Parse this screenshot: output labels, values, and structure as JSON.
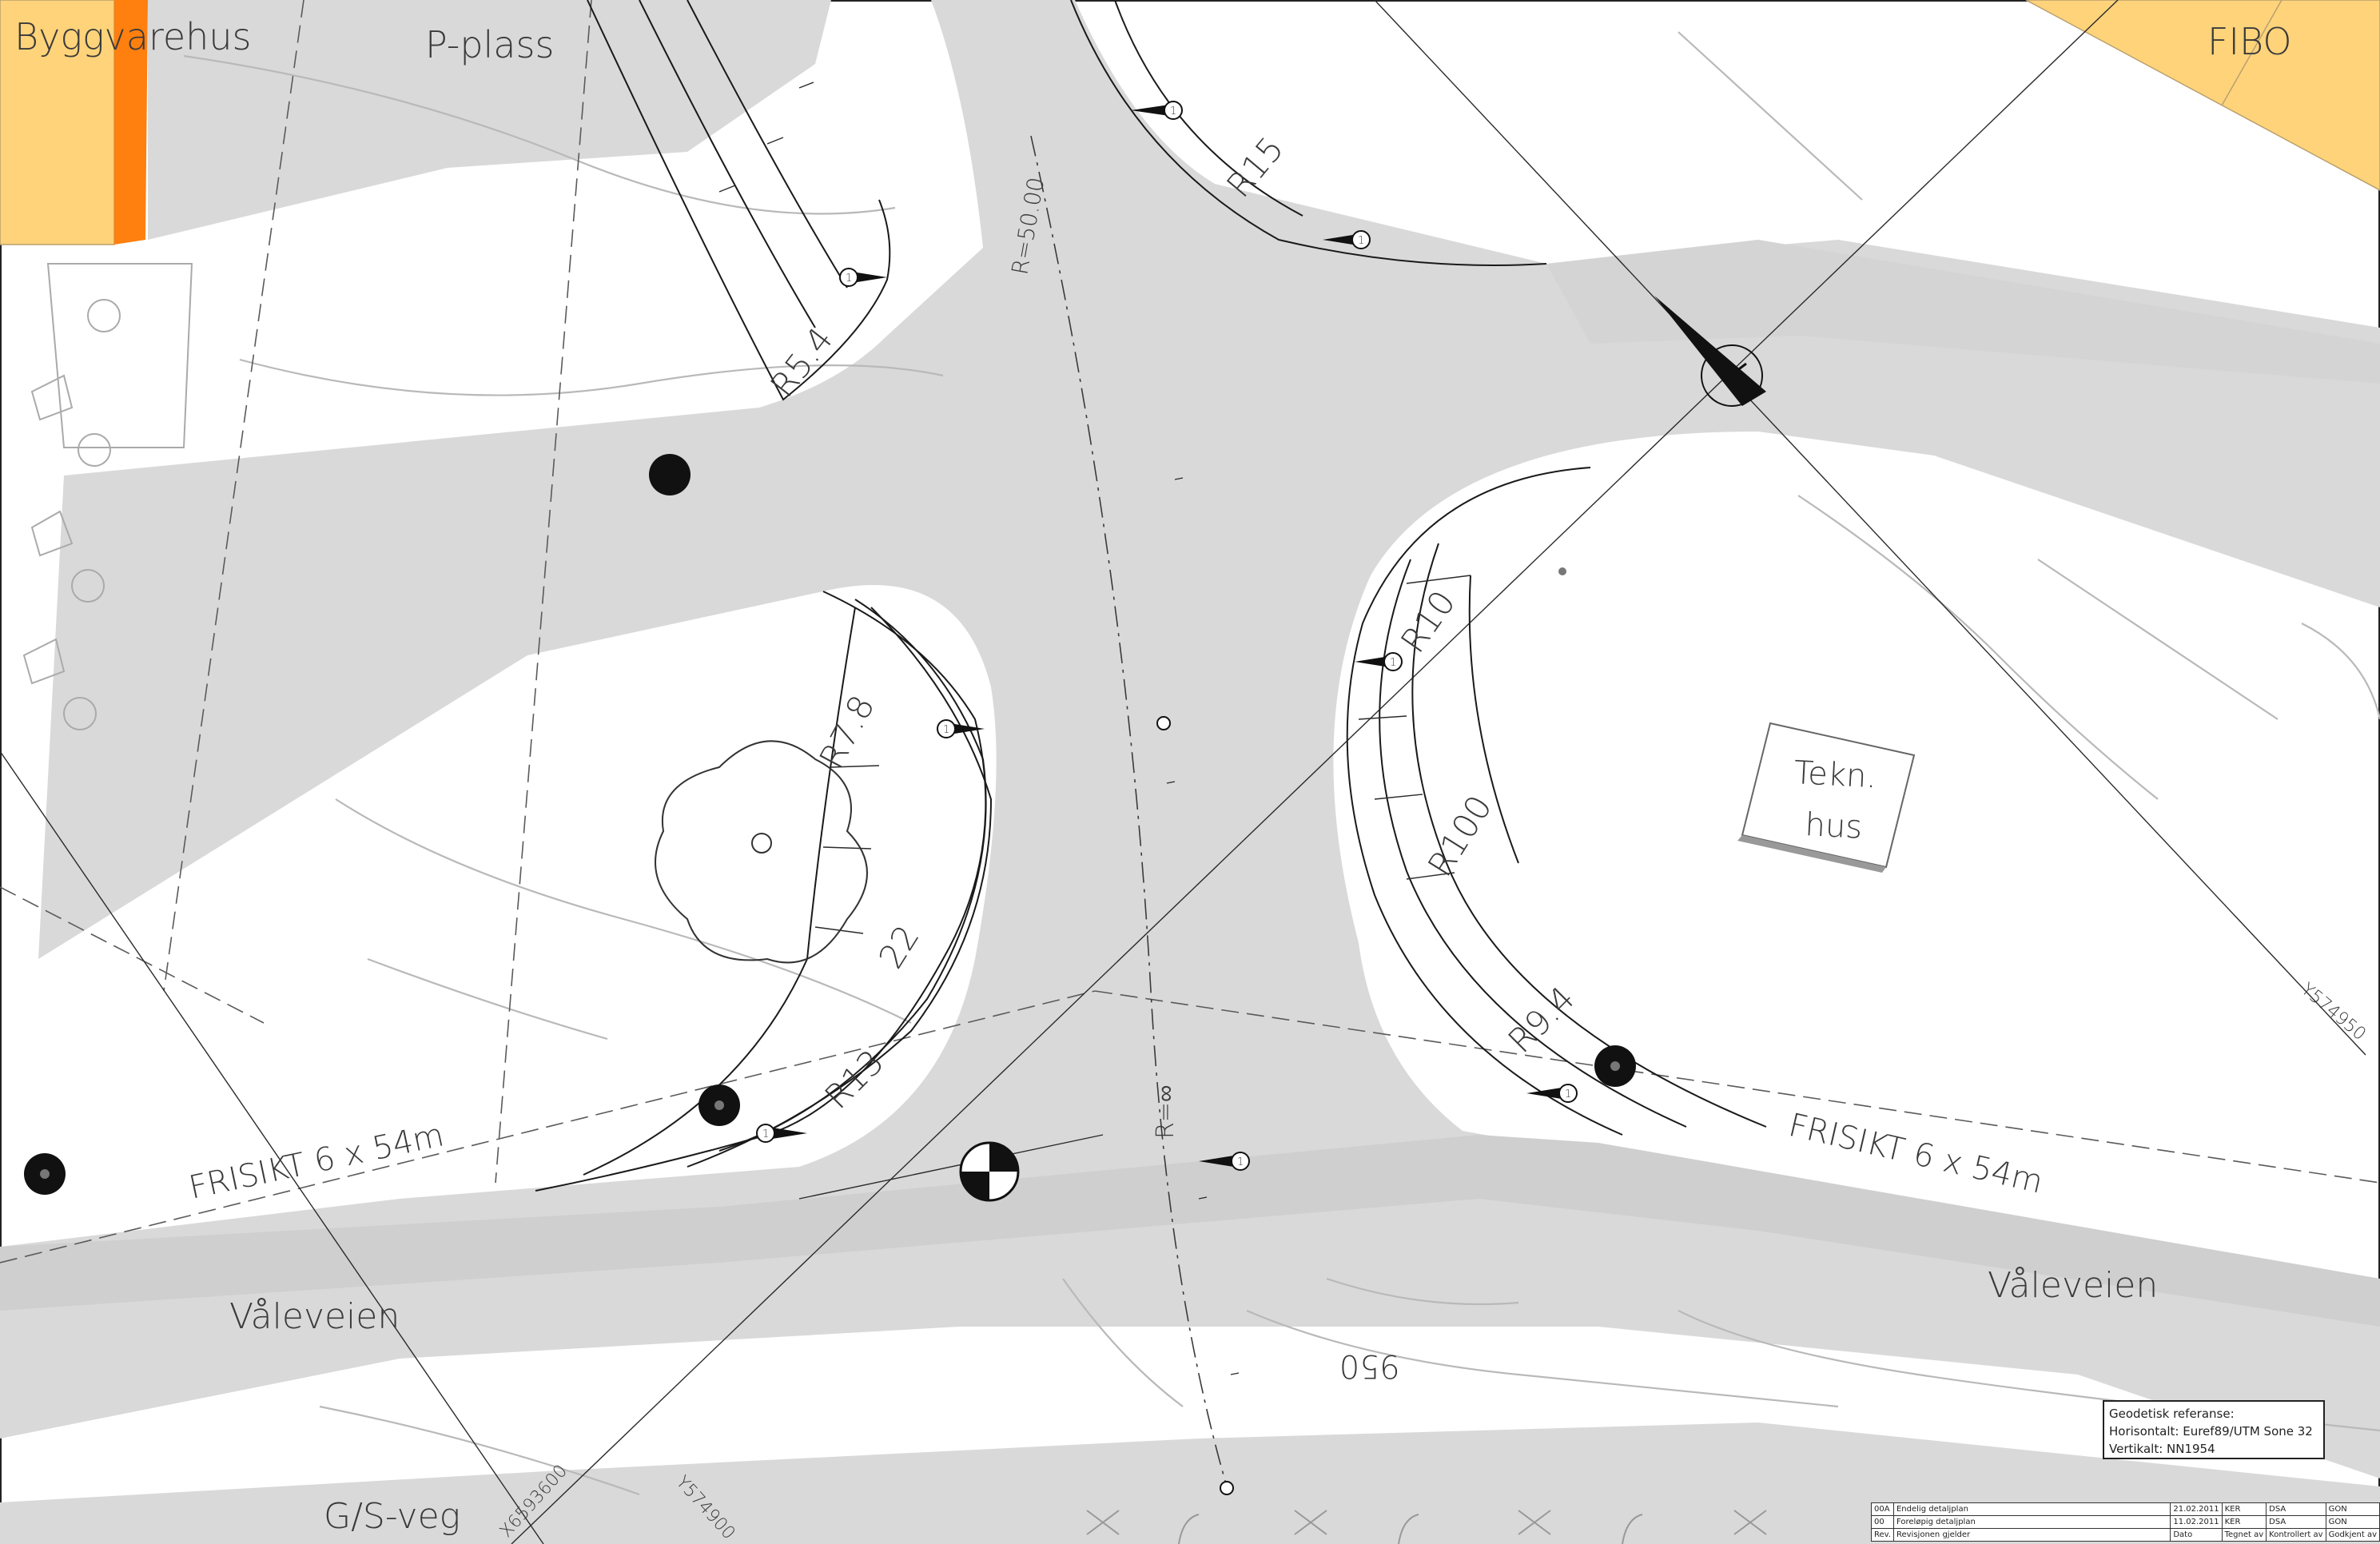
{
  "map": {
    "labels": {
      "building_left": "Byggvarehus",
      "parking": "P-plass",
      "building_right": "FIBO",
      "tech_house_line1": "Tekn.",
      "tech_house_line2": "hus",
      "road_left": "Våleveien",
      "road_right": "Våleveien",
      "path": "G/S-veg",
      "sight_left": "FRISIKT 6 x 54m",
      "sight_right": "FRISIKT 6 x 54m",
      "contour": "950",
      "radius_r15": "R15",
      "radius_r5_4": "R5.4",
      "radius_r50": "R=50.00",
      "radius_r7_8": "R7.8",
      "radius_22": "22",
      "radius_r13": "R13",
      "radius_r10": "R10",
      "radius_r100": "R100",
      "radius_r9_4": "R9.4",
      "radius_inf": "R=∞",
      "coord_y1": "Y574950",
      "coord_x": "X6593600",
      "coord_y2": "Y574900",
      "marker_number": "1"
    },
    "colors": {
      "road_fill": "#d9d9d9",
      "building_yellow": "#ffd37a",
      "building_orange": "#ff7f0f",
      "line_ink": "#1a1a1a",
      "contour_grey": "#b9b9b9"
    },
    "icons": [
      "north-arrow-icon",
      "survey-point-icon",
      "section-marker-icon",
      "tree-icon",
      "pole-icon"
    ]
  },
  "geo_reference": {
    "title": "Geodetisk referanse:",
    "horizontal": "Horisontalt: Euref89/UTM Sone 32",
    "vertical": "Vertikalt: NN1954"
  },
  "revisions": [
    {
      "rev": "00A",
      "description": "Endelig detaljplan",
      "date": "21.02.2011",
      "drawn": "KER",
      "checked": "DSA",
      "approved": "GON"
    },
    {
      "rev": "00",
      "description": "Foreløpig detaljplan",
      "date": "11.02.2011",
      "drawn": "KER",
      "checked": "DSA",
      "approved": "GON"
    }
  ],
  "revision_header": {
    "rev": "Rev.",
    "description": "Revisjonen gjelder",
    "date": "Dato",
    "drawn": "Tegnet av",
    "checked": "Kontrollert av",
    "approved": "Godkjent av"
  }
}
